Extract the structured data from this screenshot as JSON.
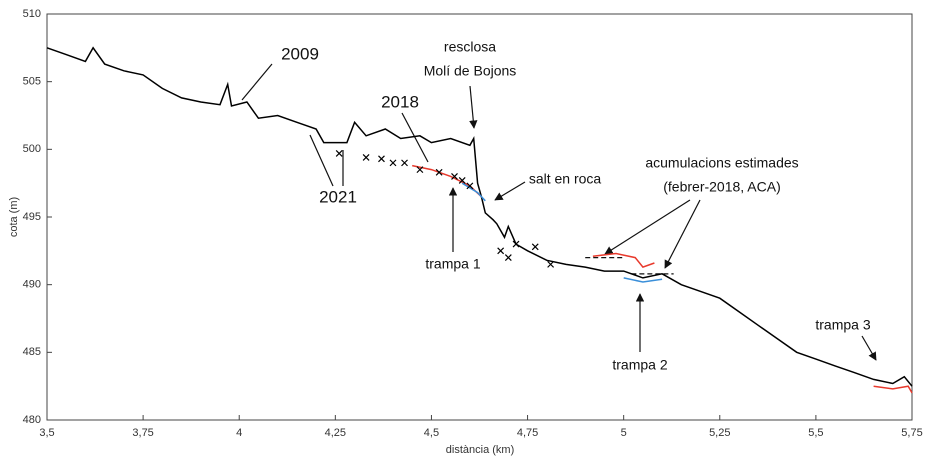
{
  "chart_data": {
    "type": "line",
    "xlabel": "distància (km)",
    "ylabel": "cota (m)",
    "xlim": [
      3.5,
      5.75
    ],
    "ylim": [
      480,
      510
    ],
    "xticks": [
      {
        "value": 3.5,
        "label": "3,5"
      },
      {
        "value": 3.75,
        "label": "3,75"
      },
      4,
      {
        "value": 4.25,
        "label": "4,25"
      },
      {
        "value": 4.5,
        "label": "4,5"
      },
      {
        "value": 4.75,
        "label": "4,75"
      },
      5,
      {
        "value": 5.25,
        "label": "5,25"
      },
      {
        "value": 5.5,
        "label": "5,5"
      },
      {
        "value": 5.75,
        "label": "5,75"
      }
    ],
    "yticks": [
      480,
      485,
      490,
      495,
      500,
      505,
      510
    ],
    "series": [
      {
        "name": "2009",
        "color": "#000000",
        "x": [
          3.5,
          3.55,
          3.6,
          3.62,
          3.65,
          3.7,
          3.75,
          3.8,
          3.85,
          3.9,
          3.95,
          3.97,
          3.98,
          4.02,
          4.05,
          4.1,
          4.15,
          4.2,
          4.22,
          4.28,
          4.3,
          4.33,
          4.38,
          4.42,
          4.47,
          4.5,
          4.55,
          4.6,
          4.61,
          4.62,
          4.63,
          4.64,
          4.66,
          4.67,
          4.69,
          4.7,
          4.72,
          4.75,
          4.8,
          4.85,
          4.9,
          4.95,
          5.0,
          5.05,
          5.1,
          5.15,
          5.2,
          5.25,
          5.3,
          5.35,
          5.4,
          5.45,
          5.5,
          5.55,
          5.6,
          5.65,
          5.7,
          5.73,
          5.75
        ],
        "values": [
          507.5,
          507,
          506.5,
          507.5,
          506.3,
          505.8,
          505.5,
          504.5,
          503.8,
          503.5,
          503.3,
          504.8,
          503.2,
          503.5,
          502.3,
          502.5,
          502,
          501.5,
          500.5,
          500.5,
          502,
          501,
          501.5,
          500.8,
          501,
          500.5,
          500.8,
          500.3,
          500.8,
          497.5,
          496.5,
          495.3,
          494.8,
          494.5,
          493.5,
          494.3,
          493,
          492.5,
          491.8,
          491.5,
          491.3,
          491,
          491,
          490.5,
          490.8,
          490,
          489.5,
          489,
          488,
          487,
          486,
          485,
          484.5,
          484,
          483.5,
          483,
          482.7,
          483.2,
          482.5
        ]
      },
      {
        "name": "2018",
        "color": "#e8392c",
        "x": [
          4.45,
          4.5,
          4.55,
          4.6,
          4.63,
          4.9,
          4.92,
          4.98,
          5.03,
          5.05,
          5.08,
          5.1,
          5.65,
          5.7,
          5.74,
          5.75
        ],
        "values": [
          498.8,
          498.5,
          498,
          497.3,
          496.5,
          null,
          492.1,
          492.3,
          492,
          491.3,
          491.6,
          null,
          482.5,
          482.3,
          482.5,
          482
        ]
      },
      {
        "name": "2021",
        "color": "#3a8fd9",
        "x": [
          4.58,
          4.62,
          4.64,
          4.8,
          5.0,
          5.05,
          5.1
        ],
        "values": [
          497.5,
          496.8,
          496.2,
          null,
          490.5,
          490.2,
          490.4
        ]
      },
      {
        "type": "scatter",
        "color": "#000000",
        "x": [
          4.26,
          4.33,
          4.37,
          4.4,
          4.43,
          4.47,
          4.52,
          4.56,
          4.58,
          4.6,
          4.68,
          4.7,
          4.72,
          4.77,
          4.81
        ],
        "values": [
          499.7,
          499.4,
          499.3,
          499,
          499,
          498.5,
          498.3,
          498,
          497.7,
          497.3,
          492.5,
          492,
          493,
          492.8,
          491.5
        ]
      }
    ],
    "reference_lines": [
      {
        "x": [
          4.9,
          5.0
        ],
        "y": 492
      },
      {
        "x": [
          5.02,
          5.13
        ],
        "y": 490.8
      }
    ],
    "annotations": [
      "resclosa",
      "Molí de Bojons",
      "salt en roca",
      "trampa 1",
      "acumulacions estimades",
      "(febrer-2018, ACA)",
      "trampa 2",
      "trampa 3"
    ]
  }
}
